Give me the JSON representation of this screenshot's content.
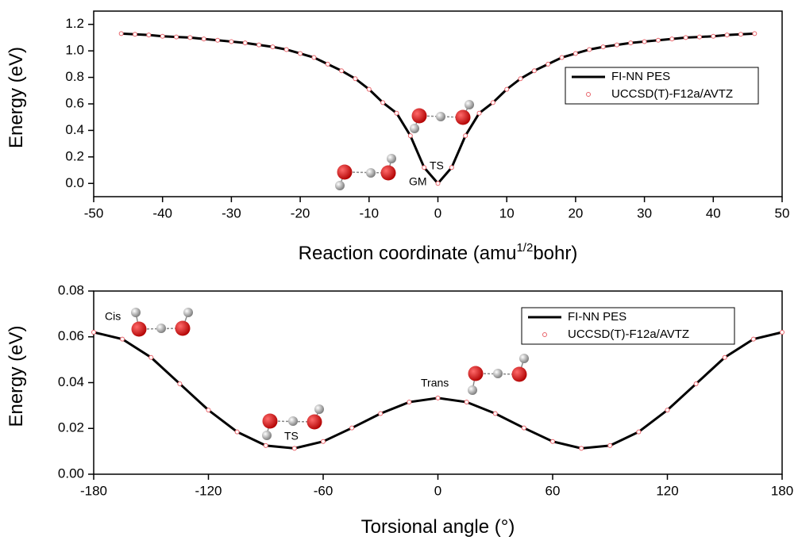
{
  "chart_data": [
    {
      "type": "line",
      "ylabel": "Energy (eV)",
      "xlabel": [
        "Reaction coordinate (amu",
        "1/2",
        "bohr)"
      ],
      "x": [
        -46,
        -44,
        -42,
        -40,
        -38,
        -36,
        -34,
        -32,
        -30,
        -28,
        -26,
        -24,
        -22,
        -20,
        -18,
        -16,
        -14,
        -12,
        -10,
        -8,
        -6,
        -4,
        -2,
        0,
        2,
        4,
        6,
        8,
        10,
        12,
        14,
        16,
        18,
        20,
        22,
        24,
        26,
        28,
        30,
        32,
        34,
        36,
        38,
        40,
        42,
        44,
        46
      ],
      "series": [
        {
          "name": "FI-NN PES",
          "color": "#000000",
          "mode": "line",
          "values": [
            1.13,
            1.125,
            1.12,
            1.11,
            1.105,
            1.1,
            1.09,
            1.08,
            1.07,
            1.06,
            1.045,
            1.03,
            1.01,
            0.98,
            0.95,
            0.9,
            0.85,
            0.79,
            0.71,
            0.61,
            0.53,
            0.36,
            0.12,
            0.0,
            0.12,
            0.36,
            0.53,
            0.61,
            0.71,
            0.79,
            0.85,
            0.9,
            0.95,
            0.98,
            1.01,
            1.03,
            1.045,
            1.06,
            1.07,
            1.08,
            1.09,
            1.1,
            1.105,
            1.11,
            1.12,
            1.125,
            1.13
          ]
        },
        {
          "name": "UCCSD(T)-F12a/AVTZ",
          "color": "#e8636a",
          "mode": "markers",
          "values": [
            1.13,
            1.125,
            1.12,
            1.11,
            1.105,
            1.1,
            1.09,
            1.08,
            1.07,
            1.06,
            1.045,
            1.03,
            1.01,
            0.98,
            0.95,
            0.9,
            0.85,
            0.79,
            0.71,
            0.61,
            0.53,
            0.36,
            0.12,
            0.0,
            0.12,
            0.36,
            0.53,
            0.61,
            0.71,
            0.79,
            0.85,
            0.9,
            0.95,
            0.98,
            1.01,
            1.03,
            1.045,
            1.06,
            1.07,
            1.08,
            1.09,
            1.1,
            1.105,
            1.11,
            1.12,
            1.125,
            1.13
          ]
        }
      ],
      "xlim": [
        -50,
        50
      ],
      "xticks": [
        -50,
        -40,
        -30,
        -20,
        -10,
        0,
        10,
        20,
        30,
        40,
        50
      ],
      "ylim": [
        -0.1,
        1.3
      ],
      "yticks": [
        {
          "value": 0,
          "label": "0.0"
        },
        0.2,
        0.4,
        0.6,
        0.8,
        {
          "value": 1,
          "label": "1.0"
        },
        1.2
      ],
      "annotations": [
        "GM",
        "TS"
      ],
      "legend": "upper right"
    },
    {
      "type": "line",
      "ylabel": "Energy (eV)",
      "xlabel": [
        "Torsional angle (°)"
      ],
      "x": [
        -180,
        -165,
        -150,
        -135,
        -120,
        -105,
        -90,
        -75,
        -60,
        -45,
        -30,
        -15,
        0,
        15,
        30,
        45,
        60,
        75,
        90,
        105,
        120,
        135,
        150,
        165,
        180
      ],
      "series": [
        {
          "name": "FI-NN PES",
          "color": "#000000",
          "mode": "line",
          "values": [
            0.062,
            0.059,
            0.051,
            0.0395,
            0.028,
            0.0185,
            0.0125,
            0.0113,
            0.0143,
            0.0202,
            0.0265,
            0.0315,
            0.0333,
            0.0315,
            0.0265,
            0.0202,
            0.0143,
            0.0113,
            0.0125,
            0.0185,
            0.028,
            0.0395,
            0.051,
            0.059,
            0.062
          ]
        },
        {
          "name": "UCCSD(T)-F12a/AVTZ",
          "color": "#e8636a",
          "mode": "markers",
          "values": [
            0.062,
            0.059,
            0.051,
            0.0395,
            0.028,
            0.0185,
            0.0125,
            0.0113,
            0.0143,
            0.0202,
            0.0265,
            0.0315,
            0.0333,
            0.0315,
            0.0265,
            0.0202,
            0.0143,
            0.0113,
            0.0125,
            0.0185,
            0.028,
            0.0395,
            0.051,
            0.059,
            0.062
          ]
        }
      ],
      "xlim": [
        -180,
        180
      ],
      "xticks": [
        -180,
        -120,
        -60,
        0,
        60,
        120,
        180
      ],
      "ylim": [
        0,
        0.08
      ],
      "yticks": [
        {
          "value": 0,
          "label": "0.00"
        },
        0.02,
        0.04,
        0.06,
        0.08
      ],
      "annotations": [
        "Cis",
        "TS",
        "Trans"
      ],
      "legend": "upper right"
    }
  ]
}
